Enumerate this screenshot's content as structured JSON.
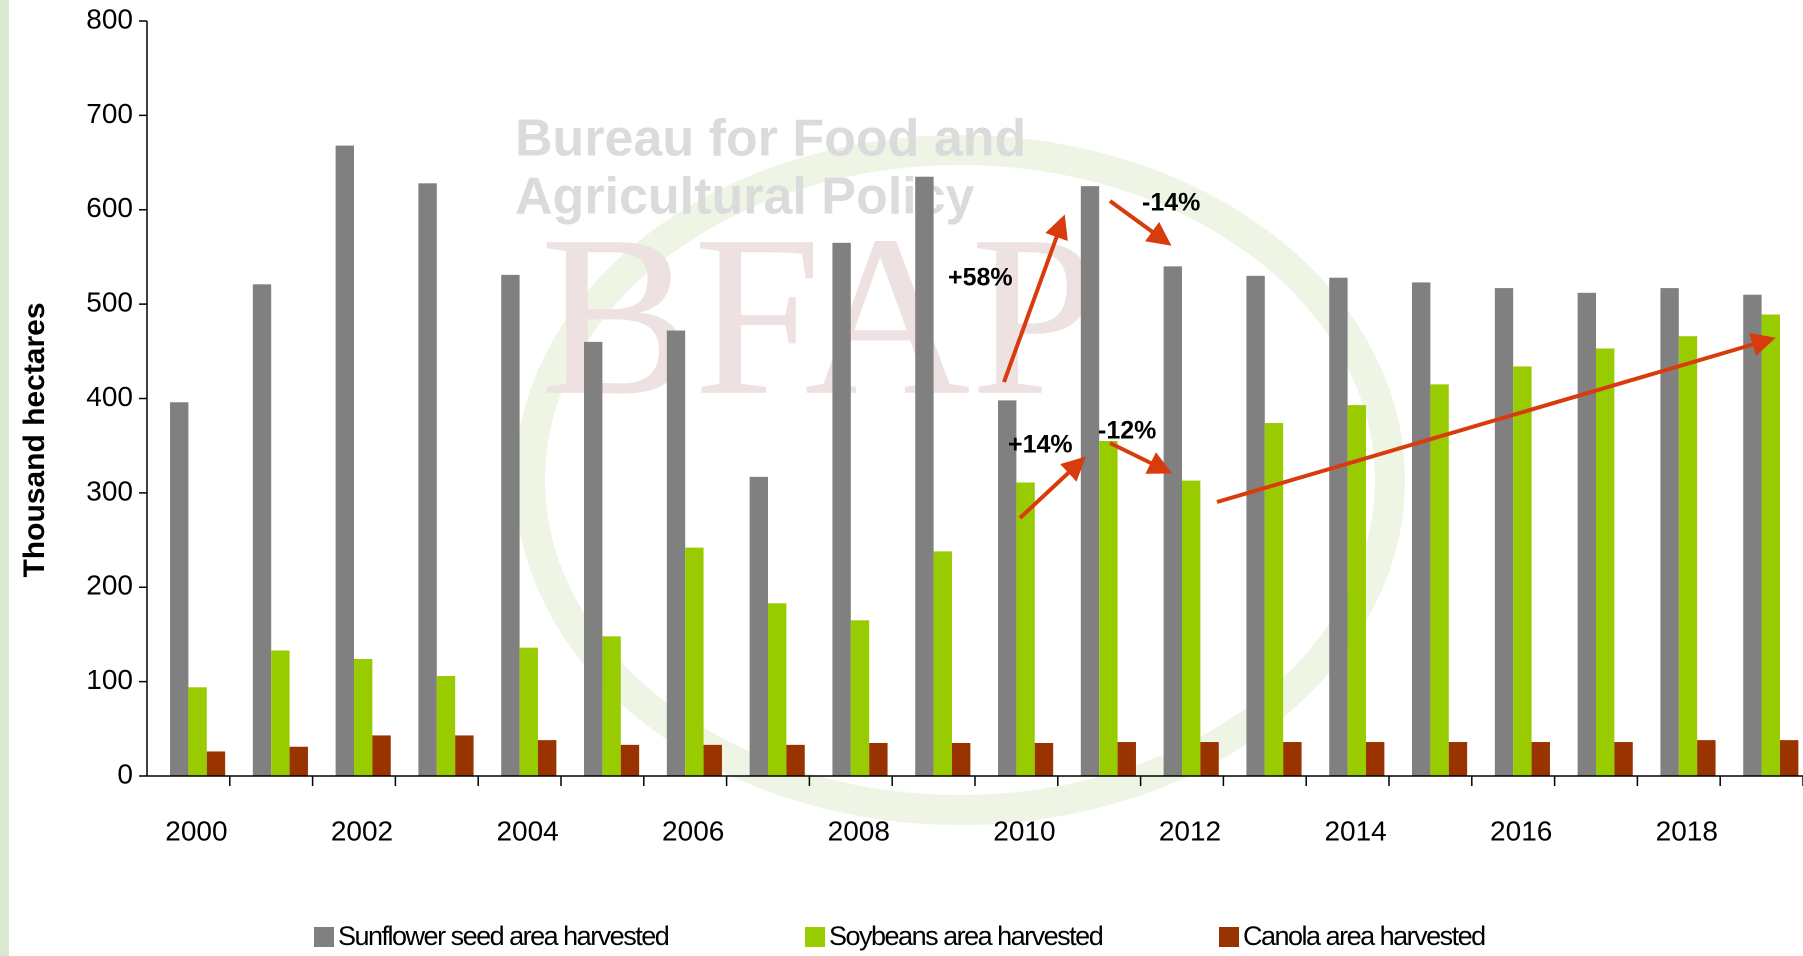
{
  "chart_data": {
    "type": "bar",
    "y_label": "Thousand hectares",
    "categories": [
      "2000",
      null,
      "2002",
      null,
      "2004",
      null,
      "2006",
      null,
      "2008",
      null,
      "2010",
      null,
      "2012",
      null,
      "2014",
      null,
      "2016",
      null,
      "2018",
      null
    ],
    "series": [
      {
        "name": "Sunflower seed area harvested",
        "color": "#808080",
        "values": [
          396,
          521,
          668,
          628,
          531,
          460,
          472,
          317,
          565,
          635,
          398,
          625,
          540,
          530,
          528,
          523,
          517,
          512,
          517,
          510
        ]
      },
      {
        "name": "Soybeans area harvested",
        "color": "#99cc00",
        "values": [
          94,
          133,
          124,
          106,
          136,
          148,
          242,
          183,
          165,
          238,
          311,
          355,
          313,
          374,
          393,
          415,
          434,
          453,
          466,
          489
        ]
      },
      {
        "name": "Canola area harvested",
        "color": "#993300",
        "values": [
          26,
          31,
          43,
          43,
          38,
          33,
          33,
          33,
          35,
          35,
          35,
          36,
          36,
          36,
          36,
          36,
          36,
          36,
          38,
          38
        ]
      }
    ],
    "ylim": [
      0,
      800
    ],
    "yticks": [
      0,
      100,
      200,
      300,
      400,
      500,
      600,
      700,
      800
    ],
    "annotations": [
      "+58%",
      "-14%",
      "+14%",
      "-12%"
    ],
    "watermark": [
      "Bureau for Food and",
      "Agricultural Policy",
      "BFAP"
    ],
    "legend": "bottom"
  }
}
